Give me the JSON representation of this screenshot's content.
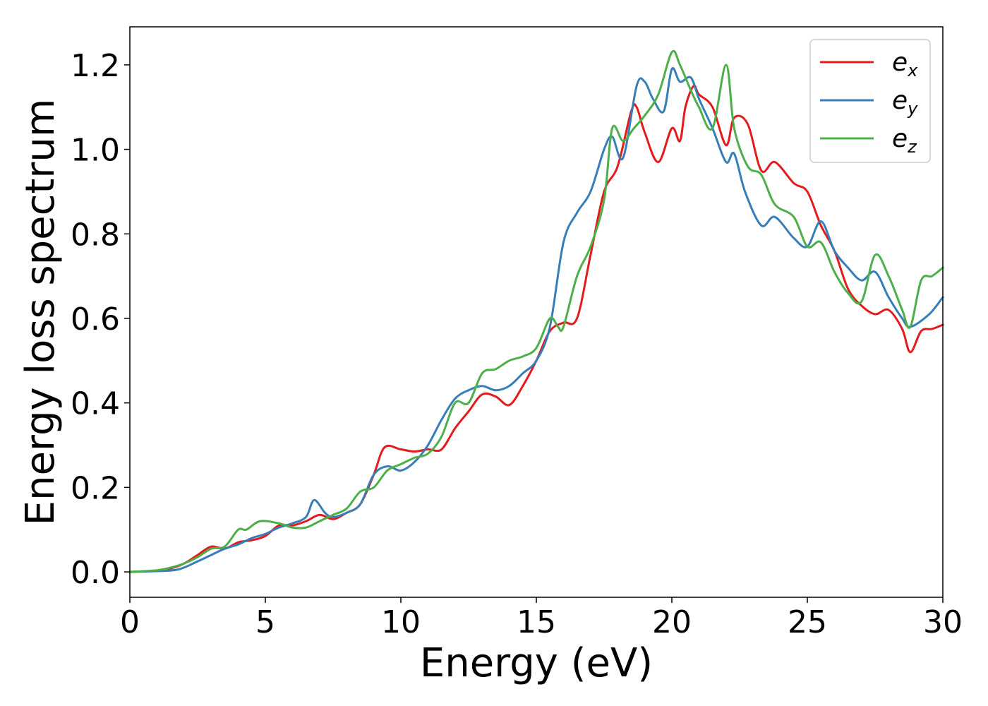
{
  "chart_data": {
    "type": "line",
    "title": "",
    "xlabel": "Energy (eV)",
    "ylabel": "Energy loss spectrum",
    "xlim": [
      0,
      30
    ],
    "ylim": [
      -0.06,
      1.29
    ],
    "xticks": [
      0,
      5,
      10,
      15,
      20,
      25,
      30
    ],
    "xtick_labels": [
      "0",
      "5",
      "10",
      "15",
      "20",
      "25",
      "30"
    ],
    "yticks": [
      0.0,
      0.2,
      0.4,
      0.6,
      0.8,
      1.0,
      1.2
    ],
    "ytick_labels": [
      "0.0",
      "0.2",
      "0.4",
      "0.6",
      "0.8",
      "1.0",
      "1.2"
    ],
    "grid": false,
    "legend_position": "top-right",
    "series": [
      {
        "name": "e_x",
        "label_base": "e",
        "label_sub": "x",
        "color": "#e41a1c",
        "x": [
          0,
          1,
          1.5,
          2,
          2.5,
          3,
          3.5,
          4,
          4.5,
          5,
          5.5,
          6,
          6.5,
          7,
          7.5,
          8,
          8.5,
          9,
          9.4,
          10,
          10.5,
          11,
          11.5,
          12,
          12.5,
          13,
          13.5,
          14,
          14.5,
          15,
          15.5,
          16,
          16.5,
          17,
          17.5,
          18,
          18.5,
          18.7,
          19,
          19.5,
          20,
          20.3,
          20.5,
          20.8,
          21,
          21.5,
          22,
          22.3,
          22.8,
          23.3,
          23.8,
          24.5,
          25,
          25.5,
          26,
          26.5,
          27,
          27.5,
          28,
          28.5,
          28.8,
          29.2,
          29.6,
          30
        ],
        "y": [
          0.0,
          0.003,
          0.008,
          0.02,
          0.04,
          0.06,
          0.055,
          0.07,
          0.075,
          0.085,
          0.11,
          0.11,
          0.12,
          0.135,
          0.125,
          0.14,
          0.16,
          0.23,
          0.295,
          0.29,
          0.285,
          0.29,
          0.29,
          0.34,
          0.38,
          0.42,
          0.415,
          0.395,
          0.44,
          0.5,
          0.57,
          0.59,
          0.6,
          0.75,
          0.9,
          0.96,
          1.09,
          1.1,
          1.04,
          0.97,
          1.05,
          1.02,
          1.1,
          1.15,
          1.13,
          1.1,
          1.01,
          1.075,
          1.06,
          0.95,
          0.97,
          0.92,
          0.9,
          0.82,
          0.76,
          0.67,
          0.63,
          0.61,
          0.62,
          0.575,
          0.52,
          0.57,
          0.575,
          0.585
        ]
      },
      {
        "name": "e_y",
        "label_base": "e",
        "label_sub": "y",
        "color": "#377eb8",
        "x": [
          0,
          1,
          1.8,
          2.5,
          3,
          3.5,
          4,
          4.5,
          5,
          5.5,
          6,
          6.5,
          6.8,
          7.2,
          7.5,
          8,
          8.5,
          9,
          9.5,
          10,
          10.5,
          11,
          11.5,
          12,
          12.5,
          13,
          13.5,
          14,
          14.5,
          15,
          15.5,
          16,
          16.5,
          17,
          17.5,
          17.8,
          18.2,
          18.7,
          19,
          19.3,
          19.7,
          20,
          20.3,
          20.7,
          21,
          21.5,
          22,
          22.3,
          22.7,
          23.3,
          23.8,
          24.5,
          25,
          25.5,
          26,
          26.5,
          27,
          27.5,
          28,
          28.5,
          28.8,
          29.5,
          30
        ],
        "y": [
          0.0,
          0.002,
          0.006,
          0.025,
          0.04,
          0.055,
          0.065,
          0.08,
          0.09,
          0.105,
          0.115,
          0.13,
          0.17,
          0.14,
          0.13,
          0.14,
          0.16,
          0.23,
          0.25,
          0.24,
          0.26,
          0.3,
          0.36,
          0.41,
          0.43,
          0.44,
          0.43,
          0.44,
          0.47,
          0.5,
          0.58,
          0.78,
          0.85,
          0.9,
          1.0,
          1.03,
          0.98,
          1.15,
          1.16,
          1.12,
          1.09,
          1.19,
          1.16,
          1.17,
          1.12,
          1.05,
          0.97,
          0.99,
          0.9,
          0.82,
          0.84,
          0.79,
          0.77,
          0.83,
          0.76,
          0.72,
          0.69,
          0.71,
          0.65,
          0.6,
          0.58,
          0.61,
          0.65
        ]
      },
      {
        "name": "e_z",
        "label_base": "e",
        "label_sub": "z",
        "color": "#4daf4a",
        "x": [
          0,
          1,
          1.5,
          2,
          2.5,
          3,
          3.5,
          4,
          4.3,
          4.8,
          5.5,
          6,
          6.5,
          7,
          7.5,
          8,
          8.5,
          9,
          9.5,
          10,
          10.5,
          11,
          11.5,
          12,
          12.5,
          13,
          13.5,
          14,
          14.5,
          15,
          15.5,
          15.8,
          16,
          16.5,
          17,
          17.5,
          17.8,
          18.2,
          18.6,
          19,
          19.5,
          20,
          20.3,
          20.7,
          21,
          21.5,
          22,
          22.3,
          22.8,
          23.3,
          23.8,
          24.5,
          25,
          25.5,
          26,
          26.5,
          27,
          27.5,
          28,
          28.5,
          28.8,
          29.2,
          29.6,
          30
        ],
        "y": [
          0.0,
          0.004,
          0.01,
          0.02,
          0.035,
          0.055,
          0.06,
          0.1,
          0.1,
          0.12,
          0.115,
          0.105,
          0.105,
          0.12,
          0.135,
          0.15,
          0.19,
          0.2,
          0.24,
          0.255,
          0.27,
          0.28,
          0.32,
          0.4,
          0.4,
          0.47,
          0.48,
          0.5,
          0.51,
          0.53,
          0.6,
          0.58,
          0.58,
          0.7,
          0.77,
          0.88,
          1.05,
          1.02,
          1.05,
          1.08,
          1.13,
          1.23,
          1.2,
          1.14,
          1.1,
          1.05,
          1.2,
          1.05,
          0.96,
          0.94,
          0.87,
          0.84,
          0.77,
          0.78,
          0.71,
          0.66,
          0.64,
          0.75,
          0.7,
          0.62,
          0.58,
          0.69,
          0.7,
          0.72
        ]
      }
    ]
  }
}
